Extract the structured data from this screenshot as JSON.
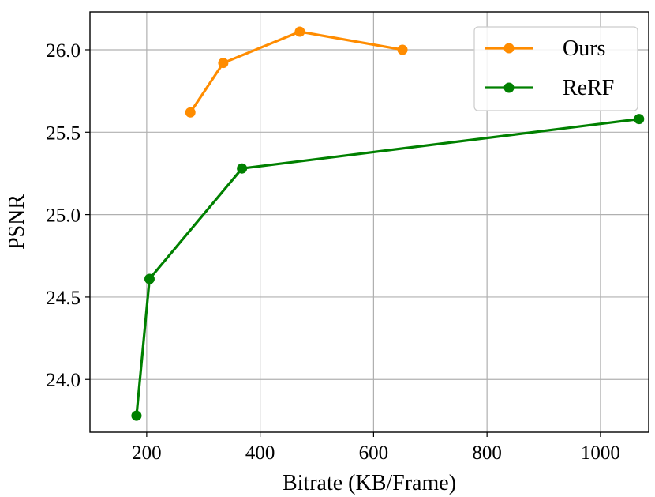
{
  "chart_data": {
    "type": "line",
    "title": "",
    "xlabel": "Bitrate (KB/Frame)",
    "ylabel": "PSNR",
    "xlim": [
      100,
      1085
    ],
    "ylim": [
      23.68,
      26.23
    ],
    "xticks": [
      200,
      400,
      600,
      800,
      1000
    ],
    "yticks": [
      24.0,
      24.5,
      25.0,
      25.5,
      26.0
    ],
    "xtick_labels": [
      "200",
      "400",
      "600",
      "800",
      "1000"
    ],
    "ytick_labels": [
      "24.0",
      "24.5",
      "25.0",
      "25.5",
      "26.0"
    ],
    "grid": true,
    "legend_position": "top-right",
    "series": [
      {
        "name": "Ours",
        "color": "#ff8c00",
        "x": [
          277,
          335,
          470,
          651
        ],
        "y": [
          25.62,
          25.92,
          26.11,
          26.0
        ]
      },
      {
        "name": "ReRF",
        "color": "#008000",
        "x": [
          182,
          205,
          368,
          1068
        ],
        "y": [
          23.78,
          24.61,
          25.28,
          25.58
        ]
      }
    ]
  }
}
